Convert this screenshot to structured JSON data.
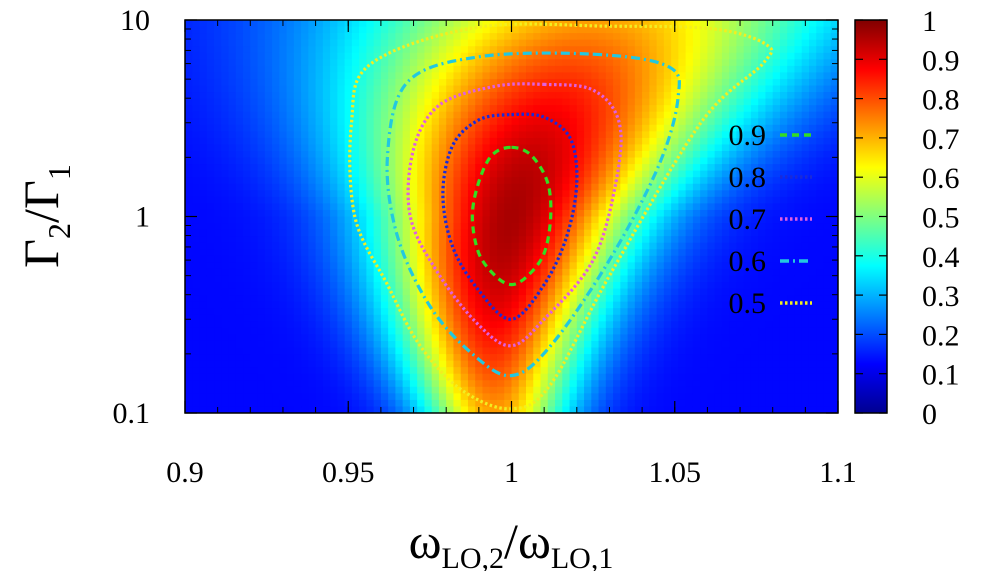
{
  "chart_data": {
    "type": "heatmap",
    "title": "",
    "xlabel": "ω_LO,2/ω_LO,1",
    "xlabel_parts": {
      "main": "ω",
      "sub1": "LO,2",
      "sep": "/ω",
      "sub2": "LO,1"
    },
    "ylabel": "Γ_2/Γ_1",
    "ylabel_parts": {
      "main": "Γ",
      "sub1": "2",
      "sep": "/Γ",
      "sub2": "1"
    },
    "xlim": [
      0.9,
      1.1
    ],
    "ylim": [
      0.1,
      10
    ],
    "yscale": "log",
    "x_ticks": [
      "0.9",
      "0.95",
      "1",
      "1.05",
      "1.1"
    ],
    "y_ticks": [
      "0.1",
      "1",
      "10"
    ],
    "colorbar": {
      "range": [
        0,
        1
      ],
      "ticks": [
        "0",
        "0.1",
        "0.2",
        "0.3",
        "0.4",
        "0.5",
        "0.6",
        "0.7",
        "0.8",
        "0.9",
        "1"
      ],
      "colormap": "jet"
    },
    "legend_position": "right",
    "contours": [
      {
        "level": "0.9",
        "color": "#33dd22",
        "style": "dashed",
        "points": [
          [
            1.0,
            2.25
          ],
          [
            1.006,
            2.05
          ],
          [
            1.011,
            1.5
          ],
          [
            1.012,
            1.0
          ],
          [
            1.01,
            0.65
          ],
          [
            1.005,
            0.5
          ],
          [
            1.0,
            0.45
          ],
          [
            0.995,
            0.5
          ],
          [
            0.99,
            0.65
          ],
          [
            0.988,
            1.0
          ],
          [
            0.99,
            1.5
          ],
          [
            0.994,
            2.05
          ]
        ]
      },
      {
        "level": "0.8",
        "color": "#1a2ad9",
        "style": "dotted",
        "points": [
          [
            1.0,
            3.3
          ],
          [
            1.01,
            3.2
          ],
          [
            1.018,
            2.5
          ],
          [
            1.02,
            1.5
          ],
          [
            1.017,
            0.8
          ],
          [
            1.01,
            0.45
          ],
          [
            1.0,
            0.3
          ],
          [
            0.99,
            0.42
          ],
          [
            0.982,
            0.7
          ],
          [
            0.979,
            1.3
          ],
          [
            0.982,
            2.3
          ],
          [
            0.99,
            3.1
          ]
        ]
      },
      {
        "level": "0.7",
        "color": "#e060e0",
        "style": "dotted",
        "points": [
          [
            1.01,
            4.7
          ],
          [
            1.025,
            4.4
          ],
          [
            1.033,
            3.0
          ],
          [
            1.032,
            1.5
          ],
          [
            1.025,
            0.6
          ],
          [
            1.01,
            0.3
          ],
          [
            1.0,
            0.22
          ],
          [
            0.99,
            0.28
          ],
          [
            0.978,
            0.5
          ],
          [
            0.969,
            1.0
          ],
          [
            0.97,
            2.2
          ],
          [
            0.978,
            3.7
          ],
          [
            0.995,
            4.6
          ]
        ]
      },
      {
        "level": "0.6",
        "color": "#22c8e0",
        "style": "dashdot",
        "points": [
          [
            1.025,
            6.7
          ],
          [
            1.048,
            5.8
          ],
          [
            1.051,
            4.0
          ],
          [
            1.045,
            1.8
          ],
          [
            1.03,
            0.6
          ],
          [
            1.012,
            0.22
          ],
          [
            1.0,
            0.155
          ],
          [
            0.988,
            0.2
          ],
          [
            0.975,
            0.35
          ],
          [
            0.965,
            0.8
          ],
          [
            0.962,
            2.0
          ],
          [
            0.968,
            4.8
          ],
          [
            0.99,
            6.5
          ]
        ]
      },
      {
        "level": "0.5",
        "color": "#f2ee20",
        "style": "dotted",
        "points": [
          [
            1.03,
            9.3
          ],
          [
            1.062,
            9.0
          ],
          [
            1.078,
            7.5
          ],
          [
            1.077,
            6.0
          ],
          [
            1.058,
            3.0
          ],
          [
            1.03,
            0.5
          ],
          [
            1.012,
            0.14
          ],
          [
            1.0,
            0.105
          ],
          [
            0.985,
            0.13
          ],
          [
            0.972,
            0.22
          ],
          [
            0.962,
            0.45
          ],
          [
            0.952,
            1.0
          ],
          [
            0.951,
            3.0
          ],
          [
            0.957,
            6.0
          ],
          [
            0.99,
            9.2
          ]
        ]
      }
    ]
  }
}
